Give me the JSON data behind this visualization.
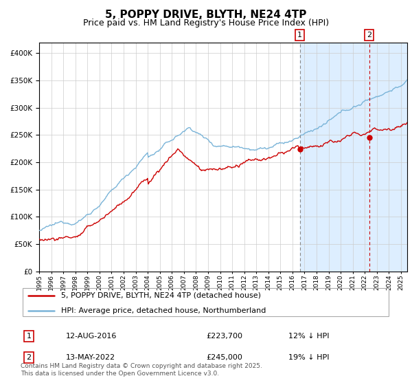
{
  "title": "5, POPPY DRIVE, BLYTH, NE24 4TP",
  "subtitle": "Price paid vs. HM Land Registry's House Price Index (HPI)",
  "legend_line1": "5, POPPY DRIVE, BLYTH, NE24 4TP (detached house)",
  "legend_line2": "HPI: Average price, detached house, Northumberland",
  "footnote": "Contains HM Land Registry data © Crown copyright and database right 2025.\nThis data is licensed under the Open Government Licence v3.0.",
  "table": [
    {
      "num": "1",
      "date": "12-AUG-2016",
      "price": "£223,700",
      "change": "12% ↓ HPI"
    },
    {
      "num": "2",
      "date": "13-MAY-2022",
      "price": "£245,000",
      "change": "19% ↓ HPI"
    }
  ],
  "sale1_year": 2016.617,
  "sale1_price": 223700,
  "sale2_year": 2022.367,
  "sale2_price": 245000,
  "vline1_color": "#888888",
  "vline2_color": "#cc0000",
  "hpi_color": "#7ab4d8",
  "price_color": "#cc0000",
  "dot_color": "#cc0000",
  "bg_highlight_color": "#ddeeff",
  "ylim": [
    0,
    420000
  ],
  "xlim_start": 1995,
  "xlim_end": 2025.5,
  "title_fontsize": 11,
  "subtitle_fontsize": 9,
  "grid_color": "#cccccc",
  "background_color": "#ffffff"
}
